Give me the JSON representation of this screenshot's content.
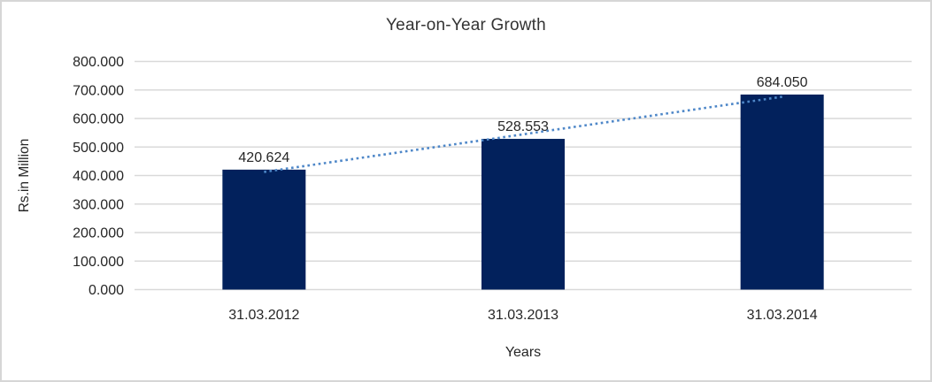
{
  "chart_data": {
    "type": "bar",
    "title": "Year-on-Year Growth",
    "xlabel": "Years",
    "ylabel": "Rs.in Million",
    "categories": [
      "31.03.2012",
      "31.03.2013",
      "31.03.2014"
    ],
    "values": [
      420.624,
      528.553,
      684.05
    ],
    "data_labels": [
      "420.624",
      "528.553",
      "684.050"
    ],
    "ylim": [
      0,
      800
    ],
    "ytick_step": 100,
    "ytick_labels": [
      "0.000",
      "100.000",
      "200.000",
      "300.000",
      "400.000",
      "500.000",
      "600.000",
      "700.000",
      "800.000"
    ],
    "grid": true,
    "legend": "none",
    "trendline": {
      "type": "linear",
      "style": "dotted"
    },
    "colors": {
      "bar": "#02215C",
      "trendline": "#4E87C8",
      "gridline": "#D9D9D9",
      "border": "#D6D6D6",
      "text": "#262626",
      "title": "#333333"
    }
  }
}
